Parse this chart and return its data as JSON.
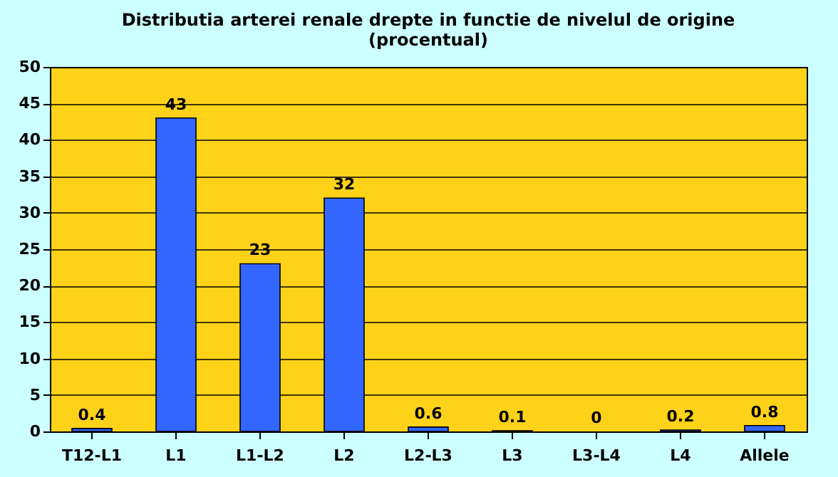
{
  "chart_data": {
    "type": "bar",
    "title": [
      "Distributia arterei renale drepte in functie de nivelul de origine",
      "(procentual)"
    ],
    "categories": [
      "T12-L1",
      "L1",
      "L1-L2",
      "L2",
      "L2-L3",
      "L3",
      "L3-L4",
      "L4",
      "Allele"
    ],
    "values": [
      0.4,
      43,
      23,
      32,
      0.6,
      0.1,
      0,
      0.2,
      0.8
    ],
    "color": "#3366ff",
    "ylim": [
      0,
      50
    ],
    "yticks": [
      0,
      5,
      10,
      15,
      20,
      25,
      30,
      35,
      40,
      45,
      50
    ],
    "grid": "y",
    "data_labels": true
  }
}
